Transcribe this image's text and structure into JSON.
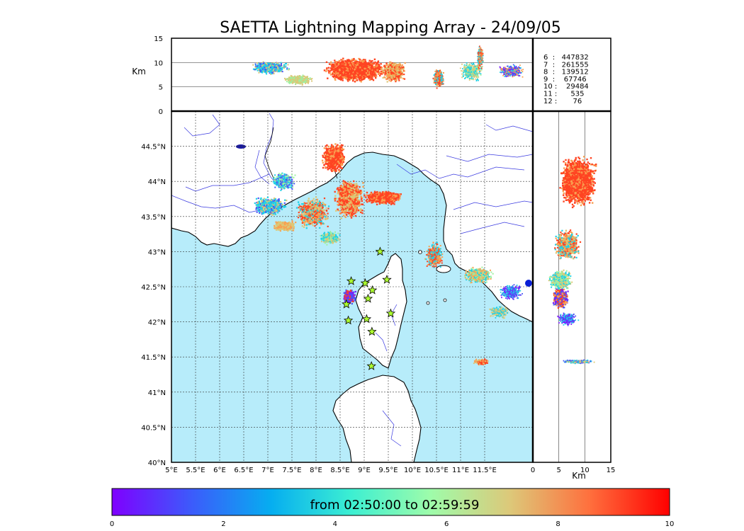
{
  "title": "SAETTA Lightning Mapping Array - 24/09/05",
  "top_panel": {
    "ylabel": "Km",
    "yticks": [
      "0",
      "5",
      "10",
      "15"
    ]
  },
  "right_panel": {
    "xlabel": "Km",
    "xticks": [
      "0",
      "5",
      "10",
      "15"
    ]
  },
  "station_counts": [
    {
      "label": "6  :   447832",
      "color": "#000000"
    },
    {
      "label": "7  :   261555",
      "color": "#ff0000"
    },
    {
      "label": "8  :   139512",
      "color": "#000000"
    },
    {
      "label": "9  :    67746",
      "color": "#000000"
    },
    {
      "label": "10 :    29484",
      "color": "#000000"
    },
    {
      "label": "11 :      535",
      "color": "#000000"
    },
    {
      "label": "12 :       76",
      "color": "#000000"
    }
  ],
  "map": {
    "lon_ticks": [
      "5°E",
      "5.5°E",
      "6°E",
      "6.5°E",
      "7°E",
      "7.5°E",
      "8°E",
      "8.5°E",
      "9°E",
      "9.5°E",
      "10°E",
      "10.5°E",
      "11°E",
      "11.5°E"
    ],
    "lat_ticks": [
      "40°N",
      "40.5°N",
      "41°N",
      "41.5°N",
      "42°N",
      "42.5°N",
      "43°N",
      "43.5°N",
      "44°N",
      "44.5°N"
    ],
    "lon_range": [
      5,
      12.5
    ],
    "lat_range": [
      40,
      45
    ],
    "sea_color": "#b7ecfa",
    "stations": [
      [
        8.73,
        42.58
      ],
      [
        9.02,
        42.55
      ],
      [
        9.17,
        42.45
      ],
      [
        9.47,
        42.6
      ],
      [
        9.33,
        43.0
      ],
      [
        9.08,
        42.33
      ],
      [
        8.63,
        42.25
      ],
      [
        8.67,
        42.02
      ],
      [
        9.05,
        42.04
      ],
      [
        9.55,
        42.12
      ],
      [
        9.16,
        41.86
      ],
      [
        9.15,
        41.37
      ]
    ]
  },
  "colorbar": {
    "label": "from 02:50:00 to 02:59:59",
    "ticks": [
      "0",
      "2",
      "4",
      "6",
      "8",
      "10"
    ],
    "colors": [
      "#7f00ff",
      "#3c5bfb",
      "#06aef0",
      "#3cefd2",
      "#9efcaa",
      "#ddc879",
      "#ff6f3d",
      "#ff0000"
    ]
  },
  "colors": {
    "dark_red": "#ff4422",
    "orange": "#f9a050",
    "tan": "#dcc877",
    "cyan": "#1fd1e6",
    "blue": "#4a55f5",
    "lightgreen": "#9ef0a0",
    "purple": "#7a1cff",
    "station_fill": "#adff2f",
    "river": "#3a3ae0"
  }
}
